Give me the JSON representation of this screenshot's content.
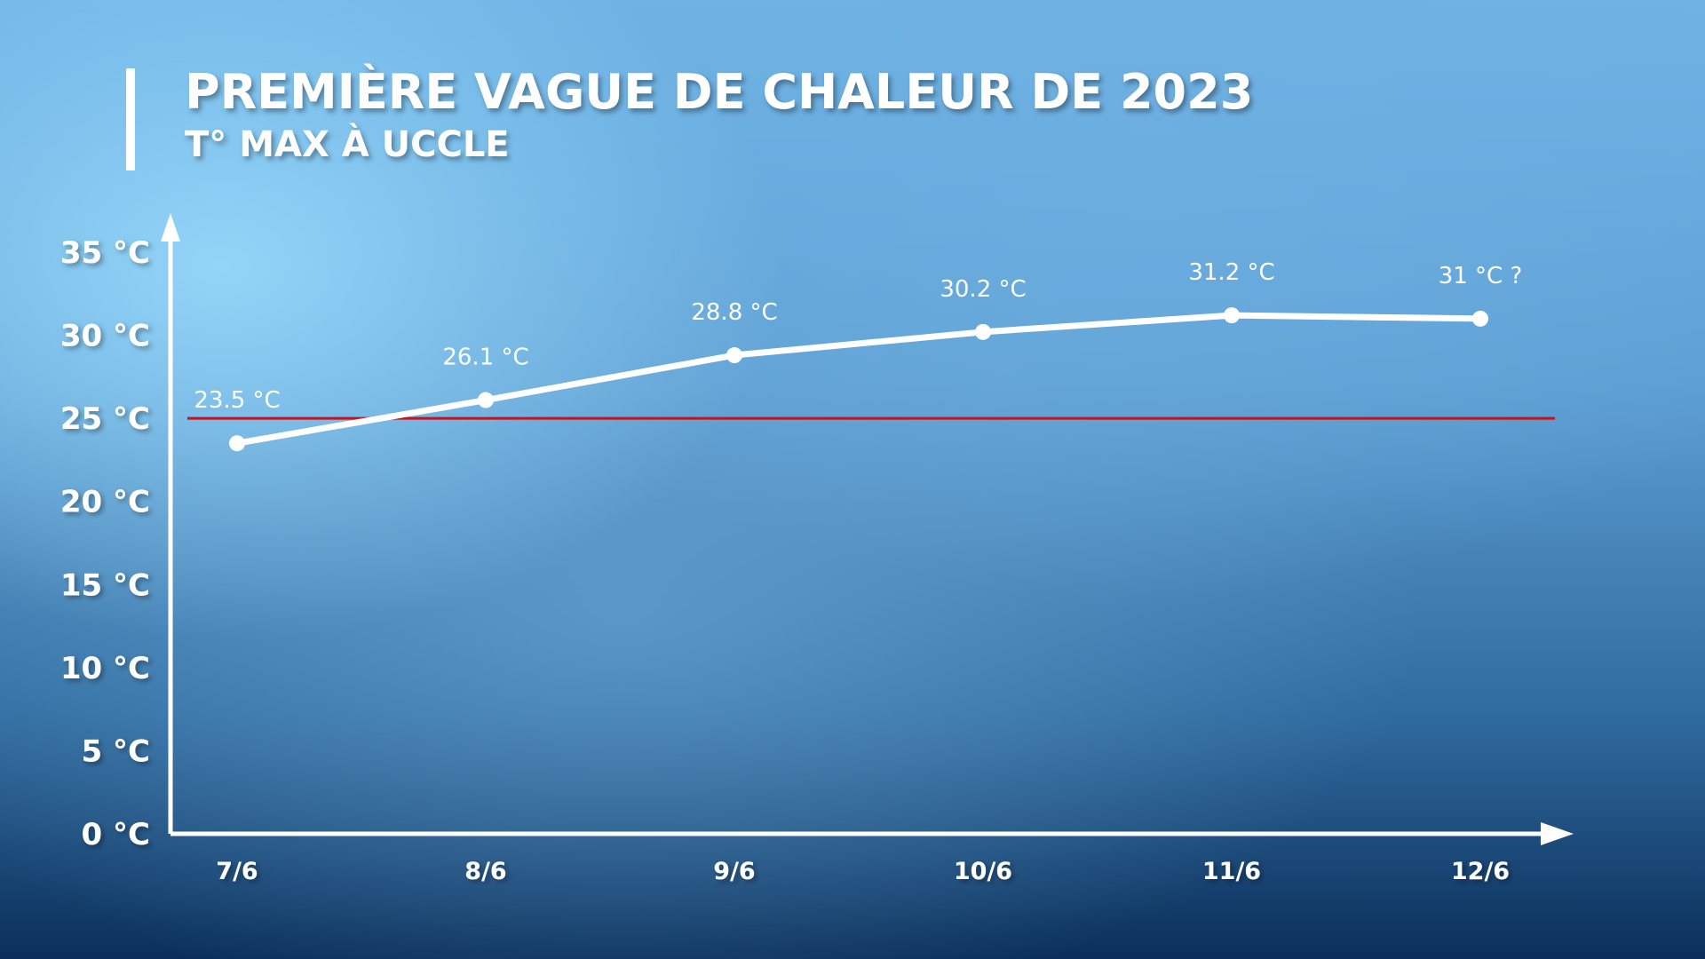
{
  "chart_data": {
    "type": "line",
    "title": "PREMIÈRE VAGUE DE CHALEUR DE 2023",
    "subtitle": "T° MAX À UCCLE",
    "categories": [
      "7/6",
      "8/6",
      "9/6",
      "10/6",
      "11/6",
      "12/6"
    ],
    "values": [
      23.5,
      26.1,
      28.8,
      30.2,
      31.2,
      31
    ],
    "data_labels": [
      "23.5 °C",
      "26.1 °C",
      "28.8 °C",
      "30.2 °C",
      "31.2 °C",
      "31 °C ?"
    ],
    "yticks": [
      0,
      5,
      10,
      15,
      20,
      25,
      30,
      35
    ],
    "ytick_labels": [
      "0 °C",
      "5 °C",
      "10 °C",
      "15 °C",
      "20 °C",
      "25 °C",
      "30 °C",
      "35 °C"
    ],
    "ylim": [
      0,
      35
    ],
    "reference_line": {
      "value": 25,
      "color": "#c0141e"
    },
    "line_color": "#ffffff",
    "grid": false,
    "legend": "none"
  }
}
